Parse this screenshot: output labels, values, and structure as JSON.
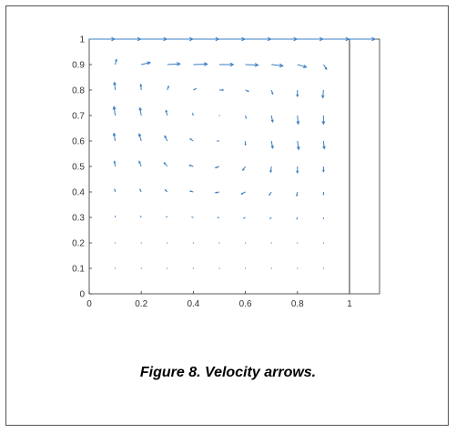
{
  "figure": {
    "caption": "Figure 8. Velocity arrows."
  },
  "chart_data": {
    "type": "quiver",
    "title": "",
    "xlabel": "",
    "ylabel": "",
    "xlim": [
      0,
      1.15
    ],
    "ylim": [
      0,
      1
    ],
    "xticks": [
      0,
      0.2,
      0.4,
      0.6,
      0.8,
      1
    ],
    "yticks": [
      0,
      0.1,
      0.2,
      0.3,
      0.4,
      0.5,
      0.6,
      0.7,
      0.8,
      0.9,
      1
    ],
    "grid": false,
    "arrow_color": "#3b7fc4",
    "vectors": [
      {
        "x": 0.0,
        "y": 1.0,
        "u": 1.0,
        "v": 0.0
      },
      {
        "x": 0.1,
        "y": 1.0,
        "u": 1.0,
        "v": 0.0
      },
      {
        "x": 0.2,
        "y": 1.0,
        "u": 1.0,
        "v": 0.0
      },
      {
        "x": 0.3,
        "y": 1.0,
        "u": 1.0,
        "v": 0.0
      },
      {
        "x": 0.4,
        "y": 1.0,
        "u": 1.0,
        "v": 0.0
      },
      {
        "x": 0.5,
        "y": 1.0,
        "u": 1.0,
        "v": 0.0
      },
      {
        "x": 0.6,
        "y": 1.0,
        "u": 1.0,
        "v": 0.0
      },
      {
        "x": 0.7,
        "y": 1.0,
        "u": 1.0,
        "v": 0.0
      },
      {
        "x": 0.8,
        "y": 1.0,
        "u": 1.0,
        "v": 0.0
      },
      {
        "x": 0.9,
        "y": 1.0,
        "u": 1.0,
        "v": 0.0
      },
      {
        "x": 1.0,
        "y": 1.0,
        "u": 1.0,
        "v": 0.0
      },
      {
        "x": 0.1,
        "y": 0.9,
        "u": 0.05,
        "v": 0.2
      },
      {
        "x": 0.2,
        "y": 0.9,
        "u": 0.35,
        "v": 0.08
      },
      {
        "x": 0.3,
        "y": 0.9,
        "u": 0.5,
        "v": 0.03
      },
      {
        "x": 0.4,
        "y": 0.9,
        "u": 0.55,
        "v": 0.02
      },
      {
        "x": 0.5,
        "y": 0.9,
        "u": 0.55,
        "v": 0.0
      },
      {
        "x": 0.6,
        "y": 0.9,
        "u": 0.5,
        "v": -0.02
      },
      {
        "x": 0.7,
        "y": 0.9,
        "u": 0.45,
        "v": -0.05
      },
      {
        "x": 0.8,
        "y": 0.9,
        "u": 0.35,
        "v": -0.1
      },
      {
        "x": 0.9,
        "y": 0.9,
        "u": 0.12,
        "v": -0.18
      },
      {
        "x": 0.1,
        "y": 0.8,
        "u": -0.03,
        "v": 0.3
      },
      {
        "x": 0.2,
        "y": 0.8,
        "u": -0.02,
        "v": 0.22
      },
      {
        "x": 0.3,
        "y": 0.8,
        "u": 0.05,
        "v": 0.15
      },
      {
        "x": 0.4,
        "y": 0.8,
        "u": 0.1,
        "v": 0.05
      },
      {
        "x": 0.5,
        "y": 0.8,
        "u": 0.15,
        "v": 0.0
      },
      {
        "x": 0.6,
        "y": 0.8,
        "u": 0.12,
        "v": -0.05
      },
      {
        "x": 0.7,
        "y": 0.8,
        "u": 0.05,
        "v": -0.15
      },
      {
        "x": 0.8,
        "y": 0.8,
        "u": 0.0,
        "v": -0.25
      },
      {
        "x": 0.9,
        "y": 0.8,
        "u": -0.03,
        "v": -0.3
      },
      {
        "x": 0.1,
        "y": 0.7,
        "u": -0.05,
        "v": 0.35
      },
      {
        "x": 0.2,
        "y": 0.7,
        "u": -0.05,
        "v": 0.3
      },
      {
        "x": 0.3,
        "y": 0.7,
        "u": -0.05,
        "v": 0.2
      },
      {
        "x": 0.4,
        "y": 0.7,
        "u": -0.03,
        "v": 0.08
      },
      {
        "x": 0.5,
        "y": 0.7,
        "u": 0.0,
        "v": 0.02
      },
      {
        "x": 0.6,
        "y": 0.7,
        "u": 0.03,
        "v": -0.1
      },
      {
        "x": 0.7,
        "y": 0.7,
        "u": 0.05,
        "v": -0.25
      },
      {
        "x": 0.8,
        "y": 0.7,
        "u": 0.03,
        "v": -0.33
      },
      {
        "x": 0.9,
        "y": 0.7,
        "u": 0.0,
        "v": -0.33
      },
      {
        "x": 0.1,
        "y": 0.6,
        "u": -0.05,
        "v": 0.3
      },
      {
        "x": 0.2,
        "y": 0.6,
        "u": -0.08,
        "v": 0.28
      },
      {
        "x": 0.3,
        "y": 0.6,
        "u": -0.1,
        "v": 0.2
      },
      {
        "x": 0.4,
        "y": 0.6,
        "u": -0.12,
        "v": 0.08
      },
      {
        "x": 0.5,
        "y": 0.6,
        "u": -0.08,
        "v": 0.0
      },
      {
        "x": 0.6,
        "y": 0.6,
        "u": 0.0,
        "v": -0.15
      },
      {
        "x": 0.7,
        "y": 0.6,
        "u": 0.05,
        "v": -0.28
      },
      {
        "x": 0.8,
        "y": 0.6,
        "u": 0.05,
        "v": -0.33
      },
      {
        "x": 0.9,
        "y": 0.6,
        "u": 0.03,
        "v": -0.3
      },
      {
        "x": 0.1,
        "y": 0.5,
        "u": -0.03,
        "v": 0.2
      },
      {
        "x": 0.2,
        "y": 0.5,
        "u": -0.08,
        "v": 0.2
      },
      {
        "x": 0.3,
        "y": 0.5,
        "u": -0.12,
        "v": 0.15
      },
      {
        "x": 0.4,
        "y": 0.5,
        "u": -0.15,
        "v": 0.05
      },
      {
        "x": 0.5,
        "y": 0.5,
        "u": -0.15,
        "v": -0.05
      },
      {
        "x": 0.6,
        "y": 0.5,
        "u": -0.1,
        "v": -0.15
      },
      {
        "x": 0.7,
        "y": 0.5,
        "u": -0.03,
        "v": -0.22
      },
      {
        "x": 0.8,
        "y": 0.5,
        "u": 0.0,
        "v": -0.25
      },
      {
        "x": 0.9,
        "y": 0.5,
        "u": 0.0,
        "v": -0.2
      },
      {
        "x": 0.1,
        "y": 0.4,
        "u": -0.02,
        "v": 0.1
      },
      {
        "x": 0.2,
        "y": 0.4,
        "u": -0.05,
        "v": 0.1
      },
      {
        "x": 0.3,
        "y": 0.4,
        "u": -0.08,
        "v": 0.08
      },
      {
        "x": 0.4,
        "y": 0.4,
        "u": -0.12,
        "v": 0.03
      },
      {
        "x": 0.5,
        "y": 0.4,
        "u": -0.15,
        "v": -0.03
      },
      {
        "x": 0.6,
        "y": 0.4,
        "u": -0.15,
        "v": -0.08
      },
      {
        "x": 0.7,
        "y": 0.4,
        "u": -0.08,
        "v": -0.12
      },
      {
        "x": 0.8,
        "y": 0.4,
        "u": -0.03,
        "v": -0.15
      },
      {
        "x": 0.9,
        "y": 0.4,
        "u": 0.0,
        "v": -0.1
      },
      {
        "x": 0.1,
        "y": 0.3,
        "u": 0.0,
        "v": 0.04
      },
      {
        "x": 0.2,
        "y": 0.3,
        "u": -0.02,
        "v": 0.04
      },
      {
        "x": 0.3,
        "y": 0.3,
        "u": -0.03,
        "v": 0.03
      },
      {
        "x": 0.4,
        "y": 0.3,
        "u": -0.05,
        "v": 0.01
      },
      {
        "x": 0.5,
        "y": 0.3,
        "u": -0.06,
        "v": -0.01
      },
      {
        "x": 0.6,
        "y": 0.3,
        "u": -0.06,
        "v": -0.03
      },
      {
        "x": 0.7,
        "y": 0.3,
        "u": -0.05,
        "v": -0.05
      },
      {
        "x": 0.8,
        "y": 0.3,
        "u": -0.02,
        "v": -0.06
      },
      {
        "x": 0.9,
        "y": 0.3,
        "u": 0.0,
        "v": -0.04
      },
      {
        "x": 0.1,
        "y": 0.2,
        "u": 0.0,
        "v": 0.02
      },
      {
        "x": 0.2,
        "y": 0.2,
        "u": -0.01,
        "v": 0.02
      },
      {
        "x": 0.3,
        "y": 0.2,
        "u": -0.01,
        "v": 0.01
      },
      {
        "x": 0.4,
        "y": 0.2,
        "u": -0.02,
        "v": 0.0
      },
      {
        "x": 0.5,
        "y": 0.2,
        "u": -0.02,
        "v": 0.0
      },
      {
        "x": 0.6,
        "y": 0.2,
        "u": -0.02,
        "v": -0.01
      },
      {
        "x": 0.7,
        "y": 0.2,
        "u": -0.02,
        "v": -0.02
      },
      {
        "x": 0.8,
        "y": 0.2,
        "u": -0.01,
        "v": -0.02
      },
      {
        "x": 0.9,
        "y": 0.2,
        "u": 0.0,
        "v": -0.02
      },
      {
        "x": 0.1,
        "y": 0.1,
        "u": 0.0,
        "v": 0.005
      },
      {
        "x": 0.2,
        "y": 0.1,
        "u": 0.0,
        "v": 0.005
      },
      {
        "x": 0.3,
        "y": 0.1,
        "u": -0.005,
        "v": 0.0
      },
      {
        "x": 0.4,
        "y": 0.1,
        "u": -0.005,
        "v": 0.0
      },
      {
        "x": 0.5,
        "y": 0.1,
        "u": -0.005,
        "v": 0.0
      },
      {
        "x": 0.6,
        "y": 0.1,
        "u": -0.005,
        "v": 0.0
      },
      {
        "x": 0.7,
        "y": 0.1,
        "u": -0.005,
        "v": -0.005
      },
      {
        "x": 0.8,
        "y": 0.1,
        "u": 0.0,
        "v": -0.005
      },
      {
        "x": 0.9,
        "y": 0.1,
        "u": 0.0,
        "v": -0.005
      }
    ]
  }
}
